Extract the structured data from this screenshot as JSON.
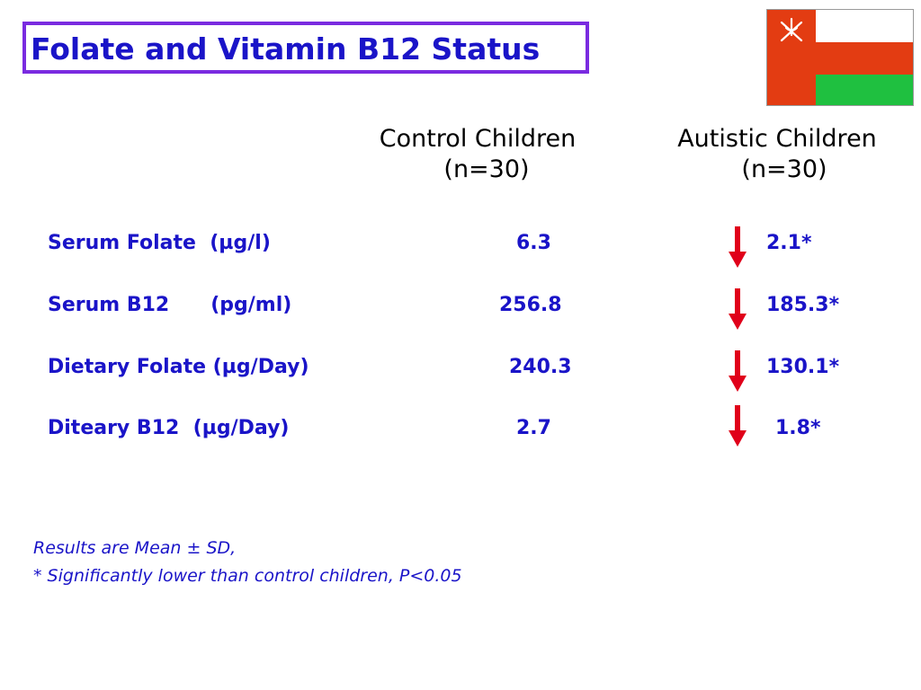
{
  "title": "Folate and Vitamin B12 Status",
  "columns": {
    "control_line1": "Control Children",
    "control_line2": "(n=30)",
    "autistic_line1": "Autistic Children",
    "autistic_line2": "(n=30)"
  },
  "rows": [
    {
      "label": "Serum Folate  (µg/l)",
      "control": "6.3",
      "autistic": "2.1*",
      "trend": "down"
    },
    {
      "label": "Serum B12      (pg/ml)",
      "control": "256.8",
      "autistic": "185.3*",
      "trend": "down"
    },
    {
      "label": "Dietary Folate (µg/Day)",
      "control": "240.3",
      "autistic": "130.1*",
      "trend": "down"
    },
    {
      "label": "Diteary B12  (µg/Day)",
      "control": "2.7",
      "autistic": "1.8*",
      "trend": "down"
    }
  ],
  "notes": {
    "line1": "Results are Mean ± SD,",
    "line2": "* Significantly lower than control children, P<0.05"
  },
  "colors": {
    "accent_text": "#1a14c8",
    "title_border": "#7a2be0",
    "arrow": "#e0001a",
    "flag_red": "#e33c12",
    "flag_green": "#1fc040"
  },
  "icons": {
    "flag": "oman-flag-icon",
    "trend": "down-arrow-icon"
  }
}
